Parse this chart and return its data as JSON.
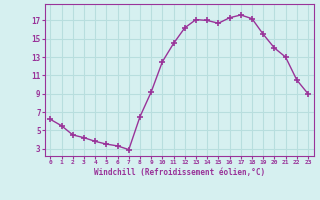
{
  "x": [
    0,
    1,
    2,
    3,
    4,
    5,
    6,
    7,
    8,
    9,
    10,
    11,
    12,
    13,
    14,
    15,
    16,
    17,
    18,
    19,
    20,
    21,
    22,
    23
  ],
  "y": [
    6.2,
    5.5,
    4.5,
    4.2,
    3.8,
    3.5,
    3.3,
    2.9,
    6.5,
    9.2,
    12.5,
    14.5,
    16.2,
    17.1,
    17.0,
    16.7,
    17.3,
    17.6,
    17.2,
    15.5,
    14.0,
    13.0,
    10.5,
    9.0
  ],
  "line_color": "#993399",
  "marker": "+",
  "bg_color": "#d6f0f0",
  "grid_color": "#b8dede",
  "xlabel": "Windchill (Refroidissement éolien,°C)",
  "yticks": [
    3,
    5,
    7,
    9,
    11,
    13,
    15,
    17
  ],
  "xticks": [
    0,
    1,
    2,
    3,
    4,
    5,
    6,
    7,
    8,
    9,
    10,
    11,
    12,
    13,
    14,
    15,
    16,
    17,
    18,
    19,
    20,
    21,
    22,
    23
  ],
  "ylim": [
    2.2,
    18.8
  ],
  "xlim": [
    -0.5,
    23.5
  ],
  "tick_color": "#993399",
  "label_color": "#993399",
  "axis_color": "#993399",
  "spine_color": "#993399"
}
